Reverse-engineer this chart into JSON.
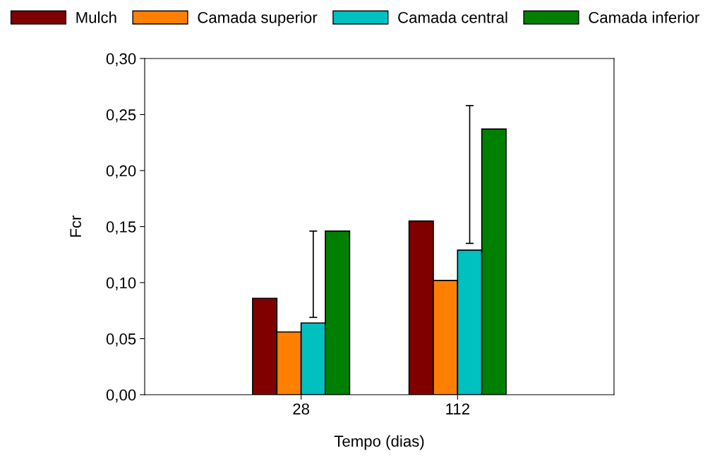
{
  "chart_data": {
    "type": "bar",
    "xlabel": "Tempo (dias)",
    "ylabel": "Fcr",
    "categories": [
      "28",
      "112"
    ],
    "series": [
      {
        "name": "Mulch",
        "color": "#800000",
        "values": [
          0.086,
          0.155
        ]
      },
      {
        "name": "Camada superior",
        "color": "#ff8000",
        "values": [
          0.056,
          0.102
        ]
      },
      {
        "name": "Camada central",
        "color": "#00c0c0",
        "values": [
          0.064,
          0.129
        ],
        "errors": [
          [
            0.069,
            0.146
          ],
          [
            0.135,
            0.258
          ]
        ]
      },
      {
        "name": "Camada inferior",
        "color": "#008000",
        "values": [
          0.146,
          0.237
        ]
      }
    ],
    "ylim": [
      0,
      0.3
    ],
    "yticks": [
      {
        "value": 0,
        "label": "0,00"
      },
      {
        "value": 0.05,
        "label": "0,05"
      },
      {
        "value": 0.1,
        "label": "0,10"
      },
      {
        "value": 0.15,
        "label": "0,15"
      },
      {
        "value": 0.2,
        "label": "0,20"
      },
      {
        "value": 0.25,
        "label": "0,25"
      },
      {
        "value": 0.3,
        "label": "0,30"
      }
    ],
    "grid": false,
    "legend": "top"
  }
}
